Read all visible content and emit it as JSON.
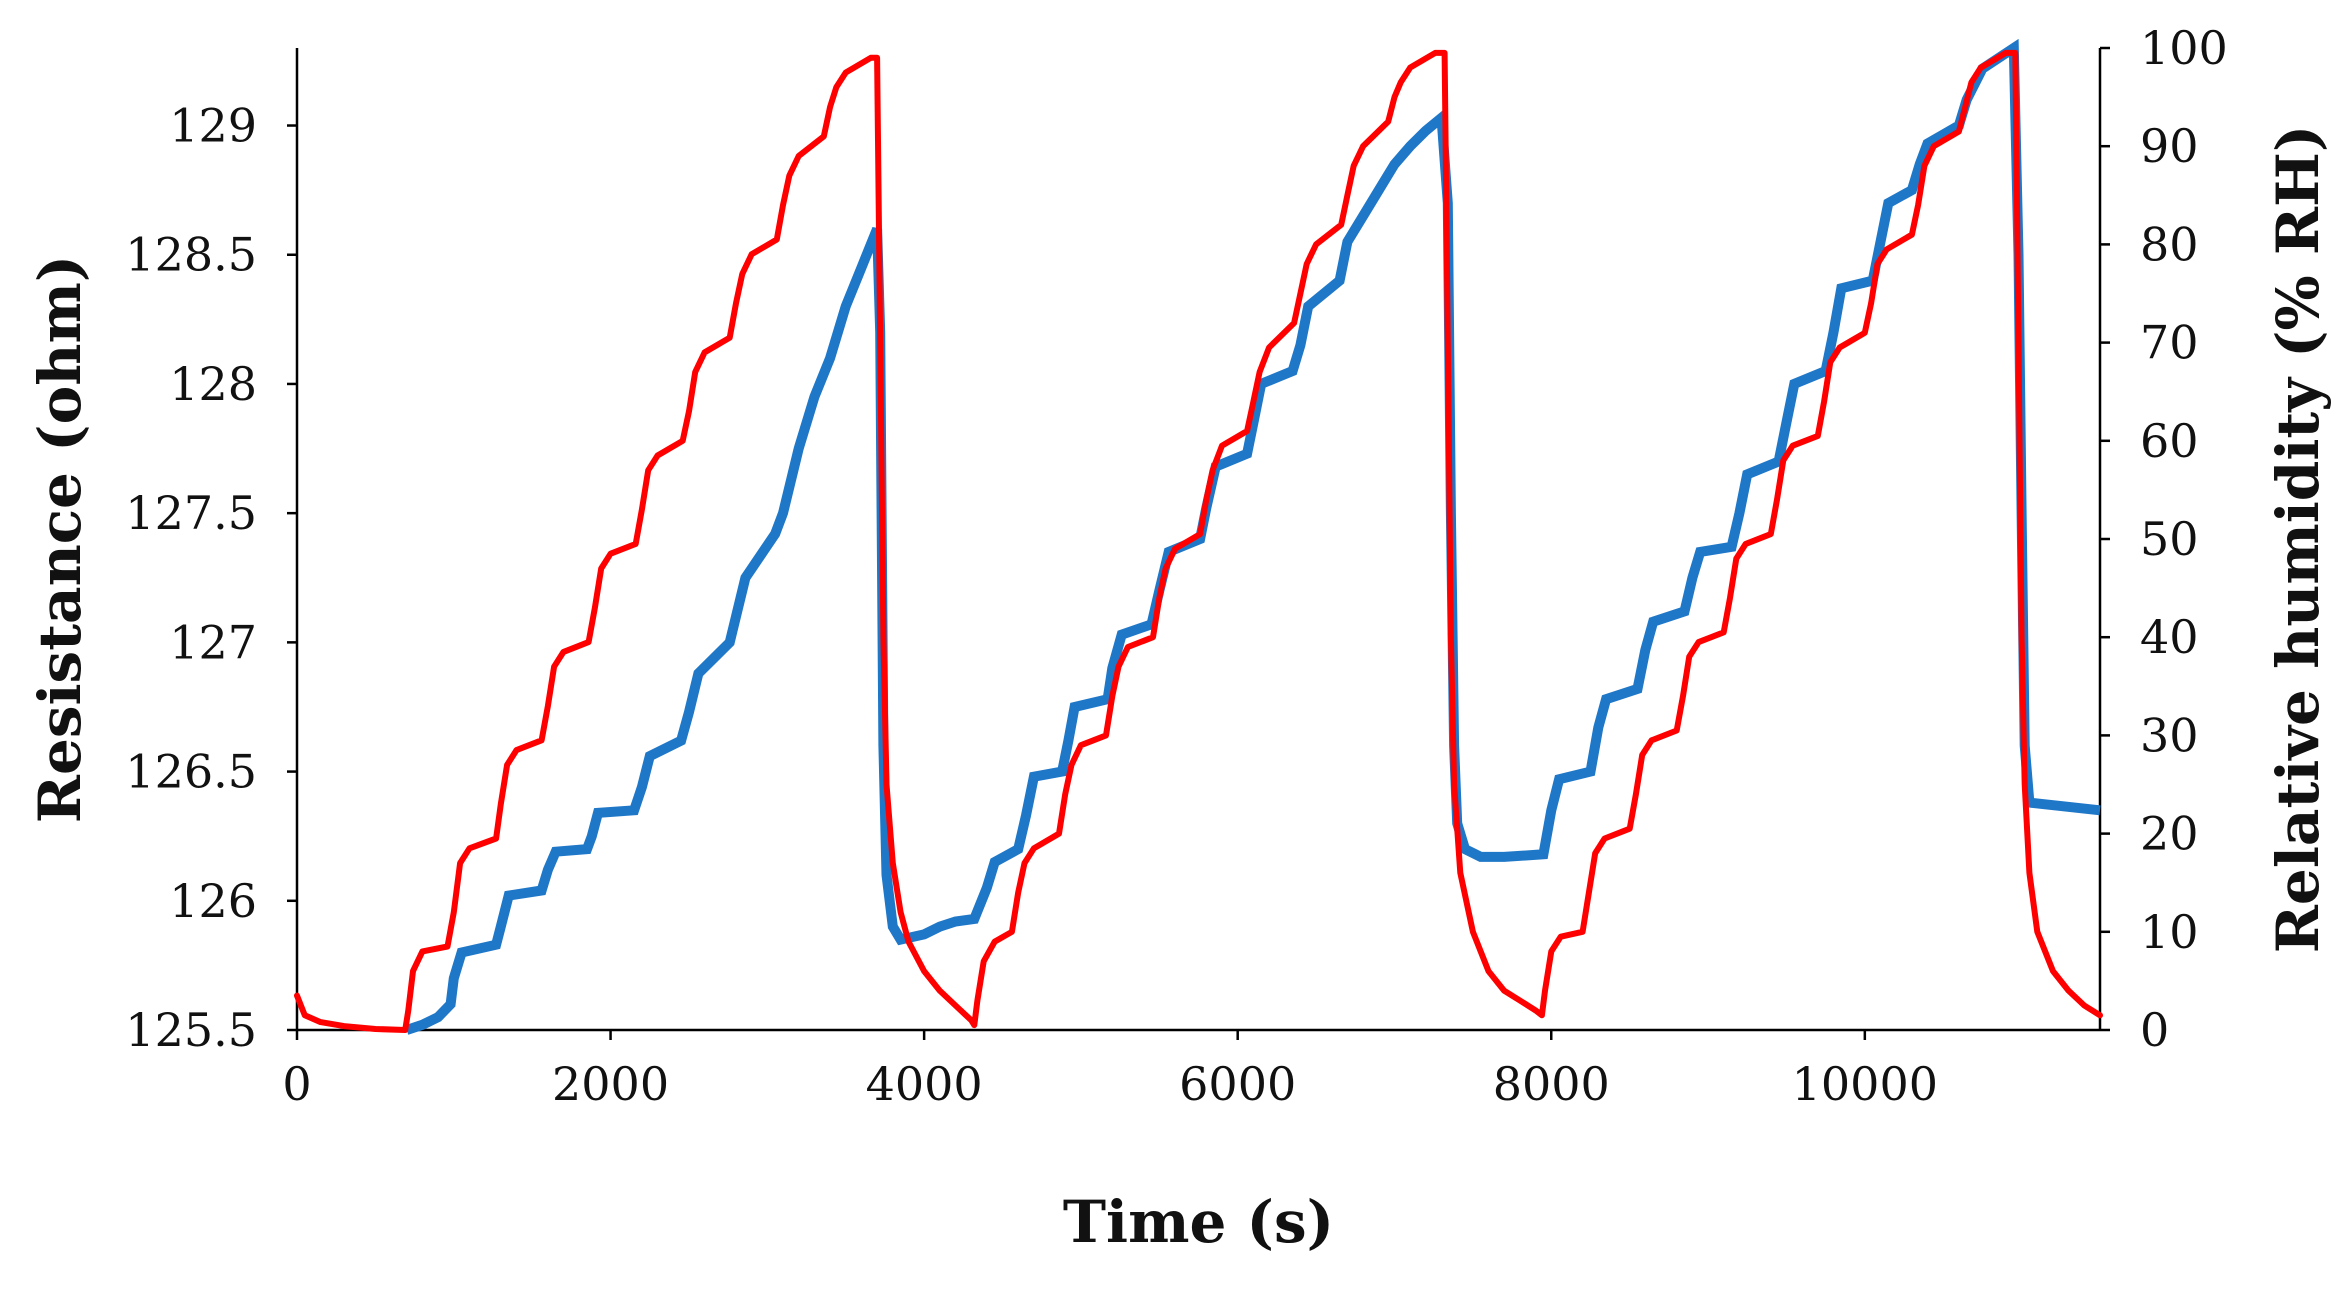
{
  "chart_data": {
    "type": "line",
    "title": "",
    "xlabel": "Time (s)",
    "ylabel_left": "Resistance (ohm)",
    "ylabel_right": "Relative humidity (% RH)",
    "xlim": [
      0,
      11500
    ],
    "ylim_left": [
      125.5,
      129.3
    ],
    "ylim_right": [
      0,
      100
    ],
    "x_ticks": [
      0,
      2000,
      4000,
      6000,
      8000,
      10000
    ],
    "x_tick_labels": [
      "0",
      "2000",
      "4000",
      "6000",
      "8000",
      "10000"
    ],
    "y_left_ticks": [
      125.5,
      126,
      126.5,
      127,
      127.5,
      128,
      128.5,
      129
    ],
    "y_left_tick_labels": [
      "125.5",
      "126",
      "126.5",
      "127",
      "127.5",
      "128",
      "128.5",
      "129"
    ],
    "y_right_ticks": [
      0,
      10,
      20,
      30,
      40,
      50,
      60,
      70,
      80,
      90,
      100
    ],
    "y_right_tick_labels": [
      "0",
      "10",
      "20",
      "30",
      "40",
      "50",
      "60",
      "70",
      "80",
      "90",
      "100"
    ],
    "grid": false,
    "series": [
      {
        "name": "Resistance",
        "axis": "left",
        "color": "#1f77c8",
        "points": [
          [
            700,
            125.5
          ],
          [
            800,
            125.52
          ],
          [
            900,
            125.55
          ],
          [
            980,
            125.6
          ],
          [
            1000,
            125.7
          ],
          [
            1050,
            125.8
          ],
          [
            1270,
            125.83
          ],
          [
            1300,
            125.9
          ],
          [
            1350,
            126.02
          ],
          [
            1560,
            126.04
          ],
          [
            1600,
            126.12
          ],
          [
            1650,
            126.19
          ],
          [
            1850,
            126.2
          ],
          [
            1880,
            126.25
          ],
          [
            1920,
            126.34
          ],
          [
            2150,
            126.35
          ],
          [
            2200,
            126.44
          ],
          [
            2250,
            126.56
          ],
          [
            2450,
            126.62
          ],
          [
            2500,
            126.73
          ],
          [
            2560,
            126.88
          ],
          [
            2760,
            127.0
          ],
          [
            2800,
            127.1
          ],
          [
            2860,
            127.25
          ],
          [
            3050,
            127.42
          ],
          [
            3100,
            127.5
          ],
          [
            3200,
            127.75
          ],
          [
            3300,
            127.95
          ],
          [
            3400,
            128.1
          ],
          [
            3500,
            128.3
          ],
          [
            3600,
            128.45
          ],
          [
            3700,
            128.6
          ],
          [
            3720,
            128.2
          ],
          [
            3740,
            126.6
          ],
          [
            3760,
            126.1
          ],
          [
            3800,
            125.9
          ],
          [
            3850,
            125.85
          ],
          [
            4000,
            125.87
          ],
          [
            4100,
            125.9
          ],
          [
            4200,
            125.92
          ],
          [
            4320,
            125.93
          ],
          [
            4400,
            126.05
          ],
          [
            4450,
            126.15
          ],
          [
            4600,
            126.2
          ],
          [
            4650,
            126.33
          ],
          [
            4700,
            126.48
          ],
          [
            4880,
            126.5
          ],
          [
            4920,
            126.62
          ],
          [
            4960,
            126.75
          ],
          [
            5170,
            126.78
          ],
          [
            5200,
            126.9
          ],
          [
            5260,
            127.03
          ],
          [
            5450,
            127.07
          ],
          [
            5500,
            127.2
          ],
          [
            5560,
            127.35
          ],
          [
            5760,
            127.4
          ],
          [
            5800,
            127.52
          ],
          [
            5860,
            127.68
          ],
          [
            6060,
            127.73
          ],
          [
            6100,
            127.85
          ],
          [
            6150,
            128.0
          ],
          [
            6350,
            128.05
          ],
          [
            6400,
            128.15
          ],
          [
            6450,
            128.3
          ],
          [
            6650,
            128.4
          ],
          [
            6700,
            128.55
          ],
          [
            6800,
            128.65
          ],
          [
            6900,
            128.75
          ],
          [
            7000,
            128.85
          ],
          [
            7100,
            128.92
          ],
          [
            7200,
            128.98
          ],
          [
            7300,
            129.03
          ],
          [
            7340,
            128.7
          ],
          [
            7360,
            127.5
          ],
          [
            7380,
            126.6
          ],
          [
            7400,
            126.3
          ],
          [
            7450,
            126.2
          ],
          [
            7550,
            126.17
          ],
          [
            7700,
            126.17
          ],
          [
            7950,
            126.18
          ],
          [
            8000,
            126.35
          ],
          [
            8050,
            126.47
          ],
          [
            8250,
            126.5
          ],
          [
            8300,
            126.67
          ],
          [
            8350,
            126.78
          ],
          [
            8550,
            126.82
          ],
          [
            8600,
            126.97
          ],
          [
            8650,
            127.08
          ],
          [
            8850,
            127.12
          ],
          [
            8900,
            127.25
          ],
          [
            8950,
            127.35
          ],
          [
            9150,
            127.37
          ],
          [
            9200,
            127.5
          ],
          [
            9250,
            127.65
          ],
          [
            9450,
            127.7
          ],
          [
            9500,
            127.85
          ],
          [
            9550,
            128.0
          ],
          [
            9750,
            128.05
          ],
          [
            9800,
            128.2
          ],
          [
            9850,
            128.37
          ],
          [
            10050,
            128.4
          ],
          [
            10100,
            128.55
          ],
          [
            10150,
            128.7
          ],
          [
            10300,
            128.75
          ],
          [
            10350,
            128.85
          ],
          [
            10400,
            128.93
          ],
          [
            10600,
            129.0
          ],
          [
            10650,
            129.1
          ],
          [
            10750,
            129.22
          ],
          [
            10950,
            129.3
          ],
          [
            10980,
            128.5
          ],
          [
            11000,
            127.5
          ],
          [
            11020,
            126.6
          ],
          [
            11050,
            126.38
          ],
          [
            11500,
            126.35
          ]
        ]
      },
      {
        "name": "Relative humidity",
        "axis": "right",
        "color": "#ff0000",
        "points": [
          [
            0,
            3.5
          ],
          [
            50,
            1.5
          ],
          [
            150,
            0.8
          ],
          [
            300,
            0.4
          ],
          [
            500,
            0.1
          ],
          [
            690,
            0
          ],
          [
            710,
            2
          ],
          [
            740,
            6
          ],
          [
            800,
            8
          ],
          [
            960,
            8.5
          ],
          [
            1000,
            12
          ],
          [
            1040,
            17
          ],
          [
            1100,
            18.5
          ],
          [
            1270,
            19.5
          ],
          [
            1300,
            23
          ],
          [
            1340,
            27
          ],
          [
            1400,
            28.5
          ],
          [
            1560,
            29.5
          ],
          [
            1600,
            33
          ],
          [
            1640,
            37
          ],
          [
            1700,
            38.5
          ],
          [
            1860,
            39.5
          ],
          [
            1900,
            43
          ],
          [
            1940,
            47
          ],
          [
            2000,
            48.5
          ],
          [
            2160,
            49.5
          ],
          [
            2200,
            53
          ],
          [
            2240,
            57
          ],
          [
            2300,
            58.5
          ],
          [
            2460,
            60
          ],
          [
            2500,
            63
          ],
          [
            2540,
            67
          ],
          [
            2600,
            69
          ],
          [
            2760,
            70.5
          ],
          [
            2800,
            74
          ],
          [
            2840,
            77
          ],
          [
            2900,
            79
          ],
          [
            3060,
            80.5
          ],
          [
            3100,
            84
          ],
          [
            3140,
            87
          ],
          [
            3200,
            89
          ],
          [
            3360,
            91
          ],
          [
            3400,
            94
          ],
          [
            3440,
            96
          ],
          [
            3500,
            97.5
          ],
          [
            3660,
            99
          ],
          [
            3700,
            99
          ],
          [
            3720,
            70
          ],
          [
            3740,
            40
          ],
          [
            3760,
            25
          ],
          [
            3800,
            17
          ],
          [
            3850,
            12
          ],
          [
            3900,
            9
          ],
          [
            4000,
            6
          ],
          [
            4100,
            4
          ],
          [
            4200,
            2.5
          ],
          [
            4300,
            1
          ],
          [
            4320,
            0.5
          ],
          [
            4340,
            3
          ],
          [
            4380,
            7
          ],
          [
            4450,
            9
          ],
          [
            4560,
            10
          ],
          [
            4600,
            14
          ],
          [
            4640,
            17
          ],
          [
            4700,
            18.5
          ],
          [
            4860,
            20
          ],
          [
            4900,
            24
          ],
          [
            4940,
            27
          ],
          [
            5000,
            29
          ],
          [
            5160,
            30
          ],
          [
            5200,
            34
          ],
          [
            5240,
            37
          ],
          [
            5300,
            39
          ],
          [
            5460,
            40
          ],
          [
            5500,
            44
          ],
          [
            5540,
            47
          ],
          [
            5600,
            49
          ],
          [
            5760,
            50.5
          ],
          [
            5800,
            54
          ],
          [
            5840,
            57
          ],
          [
            5900,
            59.5
          ],
          [
            6060,
            61
          ],
          [
            6100,
            64
          ],
          [
            6140,
            67
          ],
          [
            6200,
            69.5
          ],
          [
            6360,
            72
          ],
          [
            6400,
            75
          ],
          [
            6440,
            78
          ],
          [
            6500,
            80
          ],
          [
            6660,
            82
          ],
          [
            6700,
            85
          ],
          [
            6740,
            88
          ],
          [
            6800,
            90
          ],
          [
            6960,
            92.5
          ],
          [
            7000,
            95
          ],
          [
            7040,
            96.5
          ],
          [
            7100,
            98
          ],
          [
            7260,
            99.5
          ],
          [
            7320,
            99.5
          ],
          [
            7340,
            70
          ],
          [
            7360,
            40
          ],
          [
            7380,
            25
          ],
          [
            7420,
            16
          ],
          [
            7500,
            10
          ],
          [
            7600,
            6
          ],
          [
            7700,
            4
          ],
          [
            7800,
            3
          ],
          [
            7900,
            2
          ],
          [
            7940,
            1.5
          ],
          [
            7960,
            4
          ],
          [
            8000,
            8
          ],
          [
            8060,
            9.5
          ],
          [
            8200,
            10
          ],
          [
            8240,
            14
          ],
          [
            8280,
            18
          ],
          [
            8340,
            19.5
          ],
          [
            8500,
            20.5
          ],
          [
            8540,
            24
          ],
          [
            8580,
            28
          ],
          [
            8640,
            29.5
          ],
          [
            8800,
            30.5
          ],
          [
            8840,
            34
          ],
          [
            8880,
            38
          ],
          [
            8940,
            39.5
          ],
          [
            9100,
            40.5
          ],
          [
            9140,
            44
          ],
          [
            9180,
            48
          ],
          [
            9240,
            49.5
          ],
          [
            9400,
            50.5
          ],
          [
            9440,
            54
          ],
          [
            9480,
            58
          ],
          [
            9540,
            59.5
          ],
          [
            9700,
            60.5
          ],
          [
            9740,
            64
          ],
          [
            9780,
            68
          ],
          [
            9840,
            69.5
          ],
          [
            10000,
            71
          ],
          [
            10040,
            74
          ],
          [
            10080,
            78
          ],
          [
            10140,
            79.5
          ],
          [
            10300,
            81
          ],
          [
            10340,
            84
          ],
          [
            10380,
            88
          ],
          [
            10440,
            90
          ],
          [
            10600,
            91.5
          ],
          [
            10640,
            94
          ],
          [
            10680,
            96.5
          ],
          [
            10740,
            98
          ],
          [
            10900,
            99.5
          ],
          [
            10960,
            99.5
          ],
          [
            10980,
            70
          ],
          [
            11000,
            40
          ],
          [
            11020,
            25
          ],
          [
            11050,
            16
          ],
          [
            11100,
            10
          ],
          [
            11200,
            6
          ],
          [
            11300,
            4
          ],
          [
            11400,
            2.5
          ],
          [
            11500,
            1.5
          ]
        ]
      }
    ]
  }
}
